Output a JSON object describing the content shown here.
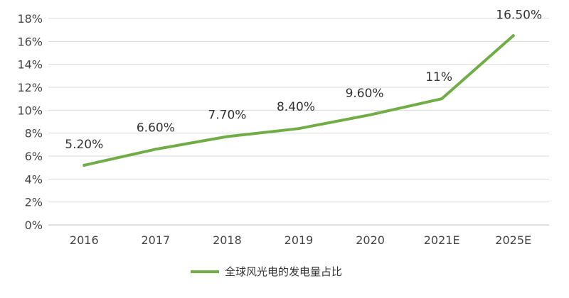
{
  "chart_data": {
    "type": "line",
    "categories": [
      "2016",
      "2017",
      "2018",
      "2019",
      "2020",
      "2021E",
      "2025E"
    ],
    "series": [
      {
        "name": "全球风光电的发电量占比",
        "values": [
          5.2,
          6.6,
          7.7,
          8.4,
          9.6,
          11,
          16.5
        ],
        "labels": [
          "5.20%",
          "6.60%",
          "7.70%",
          "8.40%",
          "9.60%",
          "11%",
          "16.50%"
        ],
        "color": "#70ad47"
      }
    ],
    "ylim": [
      0,
      18
    ],
    "yticks": [
      "0%",
      "2%",
      "4%",
      "6%",
      "8%",
      "10%",
      "12%",
      "14%",
      "16%",
      "18%"
    ],
    "grid": true,
    "legend": "bottom-center"
  }
}
